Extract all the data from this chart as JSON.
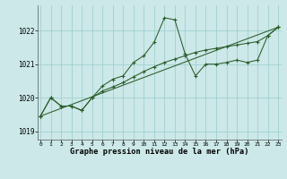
{
  "title": "Graphe pression niveau de la mer (hPa)",
  "background_color": "#cce8e8",
  "line_color": "#2a5c2a",
  "grid_color": "#99cccc",
  "xlim": [
    -0.3,
    23.3
  ],
  "ylim": [
    1018.75,
    1022.75
  ],
  "yticks": [
    1019,
    1020,
    1021,
    1022
  ],
  "xticks": [
    0,
    1,
    2,
    3,
    4,
    5,
    6,
    7,
    8,
    9,
    10,
    11,
    12,
    13,
    14,
    15,
    16,
    17,
    18,
    19,
    20,
    21,
    22,
    23
  ],
  "series1_x": [
    0,
    1,
    2,
    3,
    4,
    5,
    6,
    7,
    8,
    9,
    10,
    11,
    12,
    13,
    14,
    15,
    16,
    17,
    18,
    19,
    20,
    21,
    22,
    23
  ],
  "series1_y": [
    1019.45,
    1020.0,
    1019.75,
    1019.75,
    1019.62,
    1020.0,
    1020.35,
    1020.55,
    1020.65,
    1021.05,
    1021.25,
    1021.65,
    1022.38,
    1022.32,
    1021.3,
    1020.65,
    1021.0,
    1021.0,
    1021.05,
    1021.12,
    1021.05,
    1021.12,
    1021.85,
    1022.1
  ],
  "series2_x": [
    0,
    1,
    2,
    3,
    4,
    5,
    6,
    7,
    8,
    9,
    10,
    11,
    12,
    13,
    14,
    15,
    16,
    17,
    18,
    19,
    20,
    21,
    22,
    23
  ],
  "series2_y": [
    1019.45,
    1020.0,
    1019.75,
    1019.75,
    1019.62,
    1020.0,
    1020.2,
    1020.32,
    1020.45,
    1020.62,
    1020.78,
    1020.92,
    1021.05,
    1021.15,
    1021.25,
    1021.35,
    1021.42,
    1021.47,
    1021.52,
    1021.57,
    1021.62,
    1021.67,
    1021.85,
    1022.1
  ],
  "series3_x": [
    0,
    23
  ],
  "series3_y": [
    1019.45,
    1022.1
  ]
}
